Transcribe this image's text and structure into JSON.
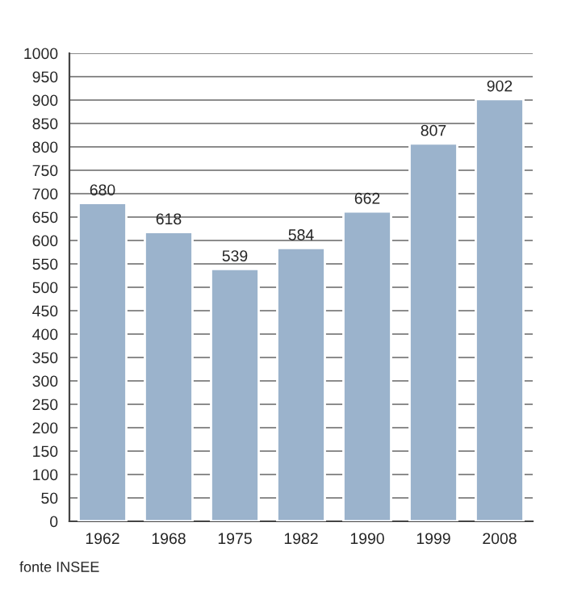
{
  "chart_data": {
    "type": "bar",
    "categories": [
      "1962",
      "1968",
      "1975",
      "1982",
      "1990",
      "1999",
      "2008"
    ],
    "values": [
      680,
      618,
      539,
      584,
      662,
      807,
      902
    ],
    "color": "#9bb3cc",
    "ylim": [
      0,
      1000
    ],
    "yticks": [
      0,
      50,
      100,
      150,
      200,
      250,
      300,
      350,
      400,
      450,
      500,
      550,
      600,
      650,
      700,
      750,
      800,
      850,
      900,
      950,
      1000
    ],
    "grid": "y",
    "data_labels": true,
    "annotations": [
      "fonte INSEE"
    ]
  }
}
